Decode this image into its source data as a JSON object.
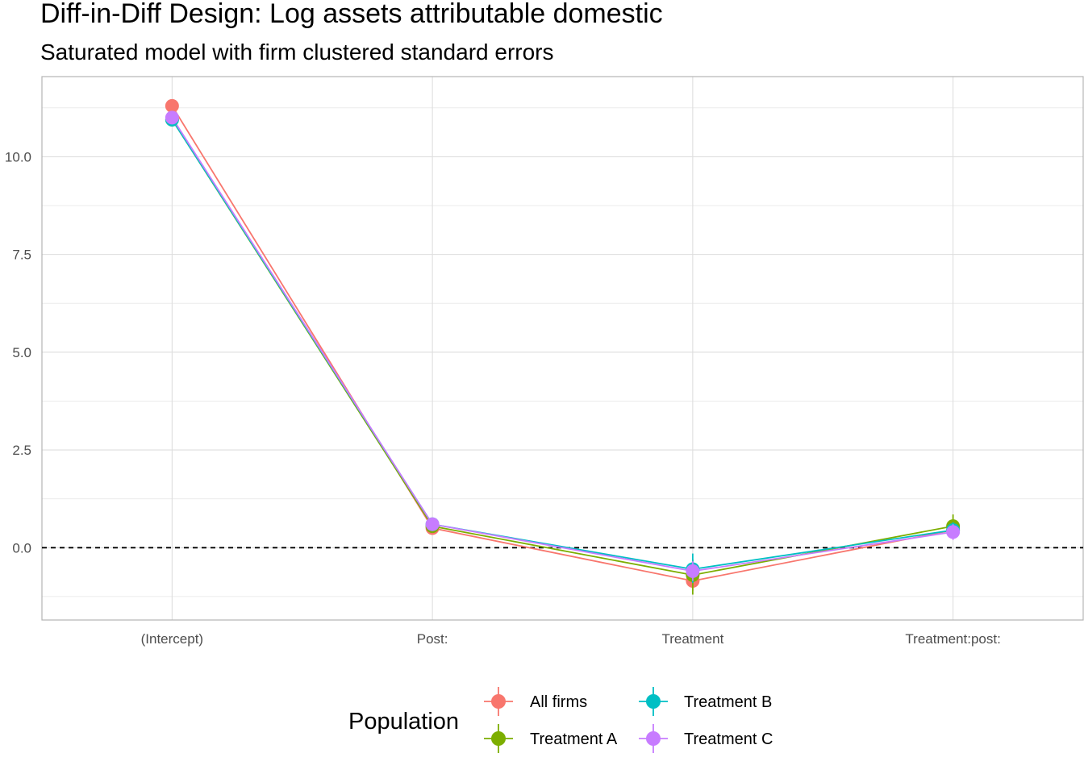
{
  "chart_data": {
    "type": "line",
    "title": "Diff-in-Diff Design: Log assets attributable domestic",
    "subtitle": "Saturated model with firm clustered standard errors",
    "xlabel": "",
    "ylabel": "",
    "categories": [
      "(Intercept)",
      "Post:",
      "Treatment",
      "Treatment:post:"
    ],
    "ylim": [
      -1.85,
      12.05
    ],
    "yticks": [
      0.0,
      2.5,
      5.0,
      7.5,
      10.0
    ],
    "ytick_labels": [
      "0.0",
      "2.5",
      "5.0",
      "7.5",
      "10.0"
    ],
    "hline": 0,
    "grid": true,
    "legend": {
      "title": "Population",
      "position": "bottom"
    },
    "series": [
      {
        "name": "All firms",
        "color": "#F8766D",
        "values": [
          11.3,
          0.5,
          -0.85,
          0.45
        ],
        "lower": [
          11.2,
          0.4,
          -1.1,
          0.3
        ],
        "upper": [
          11.4,
          0.6,
          -0.6,
          0.6
        ]
      },
      {
        "name": "Treatment A",
        "color": "#7CAE00",
        "values": [
          10.95,
          0.55,
          -0.7,
          0.55
        ],
        "lower": [
          10.85,
          0.45,
          -1.2,
          0.25
        ],
        "upper": [
          11.05,
          0.65,
          -0.3,
          0.85
        ]
      },
      {
        "name": "Treatment B",
        "color": "#00BFC4",
        "values": [
          10.95,
          0.6,
          -0.55,
          0.45
        ],
        "lower": [
          10.85,
          0.5,
          -0.9,
          0.25
        ],
        "upper": [
          11.05,
          0.7,
          -0.15,
          0.65
        ]
      },
      {
        "name": "Treatment C",
        "color": "#C77CFF",
        "values": [
          11.0,
          0.6,
          -0.6,
          0.4
        ],
        "lower": [
          10.9,
          0.5,
          -0.85,
          0.2
        ],
        "upper": [
          11.1,
          0.7,
          -0.35,
          0.6
        ]
      }
    ]
  }
}
